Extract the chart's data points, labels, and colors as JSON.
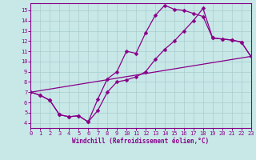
{
  "xlabel": "Windchill (Refroidissement éolien,°C)",
  "bg_color": "#c8e8e8",
  "line_color": "#880088",
  "grid_color": "#a8cccc",
  "xlim": [
    0,
    23
  ],
  "ylim": [
    3.5,
    15.7
  ],
  "xticks": [
    0,
    1,
    2,
    3,
    4,
    5,
    6,
    7,
    8,
    9,
    10,
    11,
    12,
    13,
    14,
    15,
    16,
    17,
    18,
    19,
    20,
    21,
    22,
    23
  ],
  "yticks": [
    4,
    5,
    6,
    7,
    8,
    9,
    10,
    11,
    12,
    13,
    14,
    15
  ],
  "curve1_x": [
    0,
    1,
    2,
    3,
    4,
    5,
    6,
    7,
    8,
    9,
    10,
    11,
    12,
    13,
    14,
    15,
    16,
    17,
    18,
    19,
    20,
    21,
    22,
    23
  ],
  "curve1_y": [
    7.0,
    6.7,
    6.2,
    4.8,
    4.6,
    4.7,
    4.1,
    6.3,
    8.3,
    9.0,
    11.0,
    10.8,
    12.8,
    14.5,
    15.5,
    15.1,
    15.0,
    14.7,
    14.4,
    12.3,
    12.2,
    12.1,
    11.9,
    10.5
  ],
  "curve2_x": [
    0,
    1,
    2,
    3,
    4,
    5,
    6,
    7,
    8,
    9,
    10,
    11,
    12,
    13,
    14,
    15,
    16,
    17,
    18,
    19,
    20,
    21,
    22,
    23
  ],
  "curve2_y": [
    7.0,
    6.7,
    6.2,
    4.8,
    4.6,
    4.7,
    4.1,
    5.2,
    7.0,
    8.0,
    8.2,
    8.5,
    9.0,
    10.2,
    11.2,
    12.0,
    13.0,
    14.0,
    15.2,
    12.3,
    12.2,
    12.1,
    11.9,
    10.5
  ],
  "curve3_x": [
    0,
    23
  ],
  "curve3_y": [
    7.0,
    10.5
  ],
  "markersize": 2.5,
  "linewidth": 0.9,
  "ticklabel_size": 5.0,
  "xlabel_size": 5.5
}
